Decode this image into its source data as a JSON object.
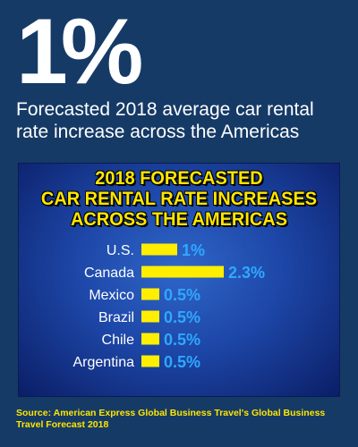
{
  "header": {
    "big_stat": "1%",
    "subtitle": "Forecasted 2018 average car rental rate increase across the Americas"
  },
  "chart_data": {
    "type": "bar",
    "orientation": "horizontal",
    "title_lines": [
      "2018 FORECASTED",
      "CAR RENTAL RATE INCREASES",
      "ACROSS THE AMERICAS"
    ],
    "categories": [
      "U.S.",
      "Canada",
      "Mexico",
      "Brazil",
      "Chile",
      "Argentina"
    ],
    "values": [
      1,
      2.3,
      0.5,
      0.5,
      0.5,
      0.5
    ],
    "value_labels": [
      "1%",
      "2.3%",
      "0.5%",
      "0.5%",
      "0.5%",
      "0.5%"
    ],
    "unit": "%",
    "bar_color": "#ffee00",
    "label_color": "#2fa8ff",
    "title_color": "#ffe600"
  },
  "footer": {
    "source": "Source: American Express Global Business Travel's Global Business Travel Forecast 2018"
  },
  "colors": {
    "background": "#153a66",
    "panel": "#1d47a8"
  }
}
